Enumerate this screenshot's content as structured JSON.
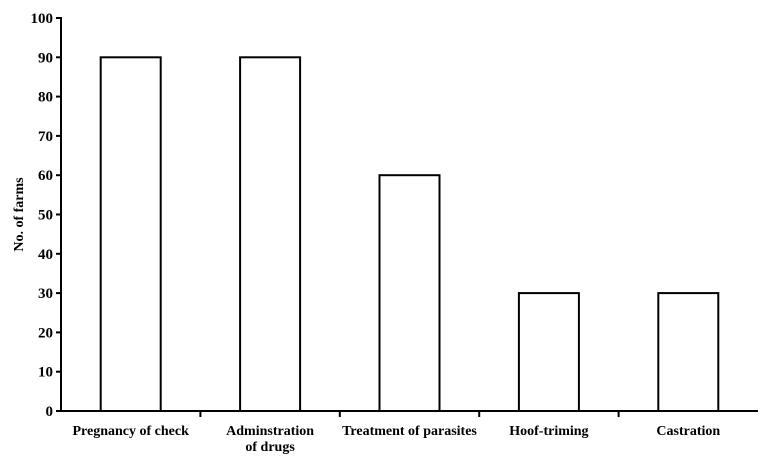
{
  "chart_data": {
    "type": "bar",
    "categories": [
      [
        "Pregnancy of check"
      ],
      [
        "Adminstration",
        "of drugs"
      ],
      [
        "Treatment of parasites"
      ],
      [
        "Hoof-triming"
      ],
      [
        "Castration"
      ]
    ],
    "values": [
      90,
      90,
      60,
      30,
      30
    ],
    "title": "",
    "xlabel": "",
    "ylabel": "No. of farms",
    "ylim": [
      0,
      100
    ],
    "yticks": [
      0,
      10,
      20,
      30,
      40,
      50,
      60,
      70,
      80,
      90,
      100
    ],
    "grid": false,
    "legend": "none",
    "bar_fill": "#ffffff",
    "bar_stroke": "#000000"
  }
}
